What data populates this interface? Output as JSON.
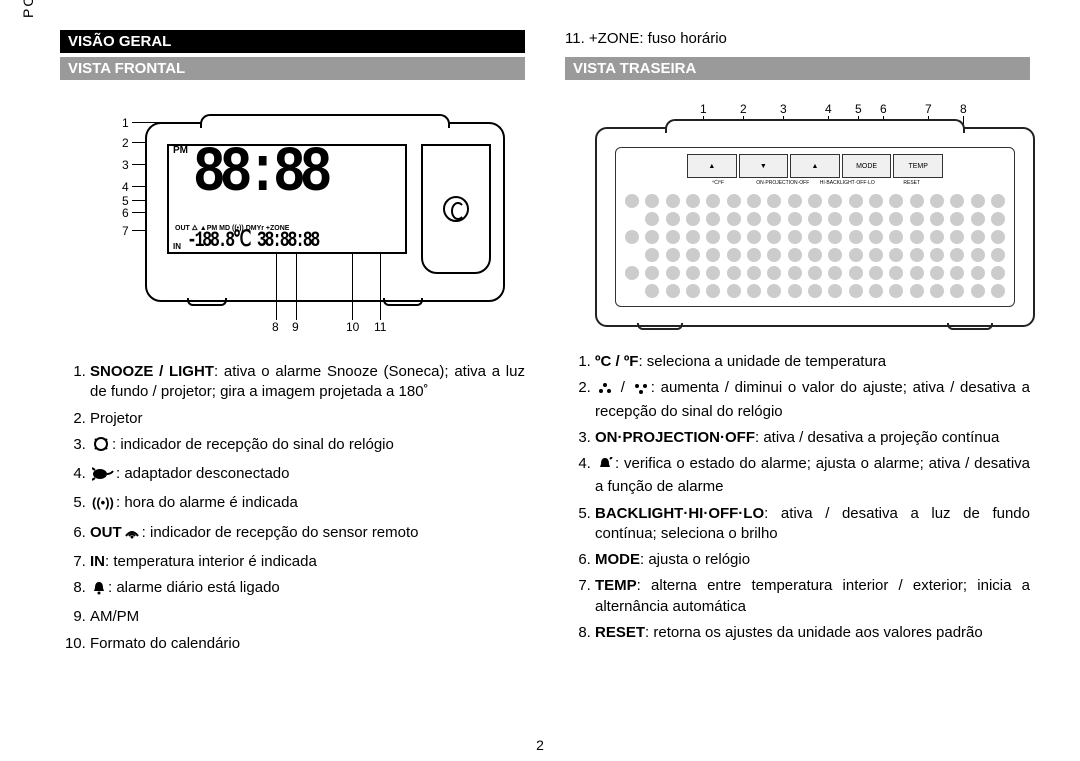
{
  "lang_tab": "POR",
  "page_number": "2",
  "left": {
    "heading_overview": "VISÃO GERAL",
    "heading_front": "VISTA FRONTAL",
    "front_callouts_left": [
      "1",
      "2",
      "3",
      "4",
      "5",
      "6",
      "7"
    ],
    "front_callouts_bottom": [
      "8",
      "9",
      "10",
      "11"
    ],
    "display": {
      "pm": "PM",
      "big_digits": "88:88",
      "icon_row": "OUT 🜂   ▲PM MD ((•)) DMYr +ZONE",
      "in": "IN",
      "small_digits": "-188.8℃ 38:88:88"
    },
    "items": [
      {
        "bold": "SNOOZE / LIGHT",
        "text": ": ativa o alarme Snooze (Soneca); ativa a luz de fundo / projetor; gira a imagem projetada a 180˚"
      },
      {
        "text": "Projetor"
      },
      {
        "icon": "signal",
        "text": ": indicador de recepção do sinal do relógio"
      },
      {
        "icon": "plug",
        "text": ": adaptador desconectado"
      },
      {
        "icon": "waves",
        "text": ": hora do alarme é indicada"
      },
      {
        "bold": "OUT",
        "icon_after": "wifi",
        "text": ": indicador de recepção do sensor remoto"
      },
      {
        "bold": "IN",
        "text": ": temperatura interior é indicada"
      },
      {
        "icon": "bell",
        "text": ": alarme diário está ligado"
      },
      {
        "text": "AM/PM"
      },
      {
        "text": "Formato do calendário"
      }
    ]
  },
  "right": {
    "top_line": "11. +ZONE: fuso horário",
    "heading_rear": "VISTA TRASEIRA",
    "rear_callouts_top": [
      "1",
      "2",
      "3",
      "4",
      "5",
      "6",
      "7",
      "8"
    ],
    "controls": [
      "▲",
      "▼",
      "▲",
      "MODE",
      "TEMP"
    ],
    "tiny": [
      "ºC/ºF",
      "ON·PROJECTION·OFF",
      "HI·BACKLIGHT·OFF·LO",
      "RESET"
    ],
    "items": [
      {
        "bold": "ºC / ºF",
        "text": ": seleciona a unidade de temperatura"
      },
      {
        "icon_pair": true,
        "text": ": aumenta / diminui o valor do ajuste; ativa / desativa a recepção do sinal do relógio"
      },
      {
        "bold": "ON·PROJECTION·OFF",
        "text": ": ativa / desativa a projeção contínua"
      },
      {
        "icon": "bellup",
        "text": ": verifica o estado do alarme; ajusta o alarme; ativa / desativa a função de alarme"
      },
      {
        "bold": "BACKLIGHT·HI·OFF·LO",
        "text": ": ativa / desativa a luz de fundo contínua; seleciona o brilho"
      },
      {
        "bold": "MODE",
        "text": ": ajusta o relógio"
      },
      {
        "bold": "TEMP",
        "text": ": alterna entre temperatura interior / exterior; inicia a alternância automática"
      },
      {
        "bold": "RESET",
        "text": ": retorna os ajustes da unidade aos valores padrão"
      }
    ]
  },
  "icons_svg": {
    "signal": "<svg width='18' height='16'><circle cx='9' cy='8' r='6' fill='none' stroke='#000' stroke-width='2'/><path d='M4 4 L3 3 M14 4 L15 3 M4 12 L3 13 M14 12 L15 13' stroke='#000' stroke-width='2'/></svg>",
    "plug": "<svg width='22' height='14'><ellipse cx='8' cy='7' rx='7' ry='5' fill='#000'/><line x1='3' y1='3' x2='0' y2='1' stroke='#000' stroke-width='2'/><line x1='3' y1='11' x2='0' y2='13' stroke='#000' stroke-width='2'/><path d='M15 7 Q19 7 21 4' stroke='#000' stroke-width='2' fill='none'/></svg>",
    "waves": "<svg width='22' height='14'><text x='0' y='11' font-size='13' font-weight='bold'>((•))</text></svg>",
    "wifi": "<svg width='16' height='14'><path d='M2 10 Q8 2 14 10' stroke='#000' stroke-width='2' fill='none'/><path d='M5 10 Q8 6 11 10' stroke='#000' stroke-width='2' fill='none'/><circle cx='8' cy='11' r='1.5' fill='#000'/></svg>",
    "bell": "<svg width='14' height='14'><path d='M7 1 Q11 1 11 7 L12 10 L2 10 L3 7 Q3 1 7 1 Z' fill='#000'/><circle cx='7' cy='12' r='1.5' fill='#000'/></svg>",
    "bellup": "<svg width='16' height='14'><path d='M8 1 Q12 1 12 7 L13 10 L3 10 L4 7 Q4 1 8 1 Z' fill='#000'/><path d='M13 2 L15 0' stroke='#000' stroke-width='2'/></svg>",
    "dots_up": "<svg width='16' height='12'><circle cx='8' cy='2' r='2' fill='#000'/><circle cx='4' cy='8' r='2' fill='#000'/><circle cx='12' cy='8' r='2' fill='#000'/></svg>",
    "dots_down": "<svg width='16' height='12'><circle cx='4' cy='3' r='2' fill='#000'/><circle cx='12' cy='3' r='2' fill='#000'/><circle cx='8' cy='9' r='2' fill='#000'/></svg>"
  }
}
